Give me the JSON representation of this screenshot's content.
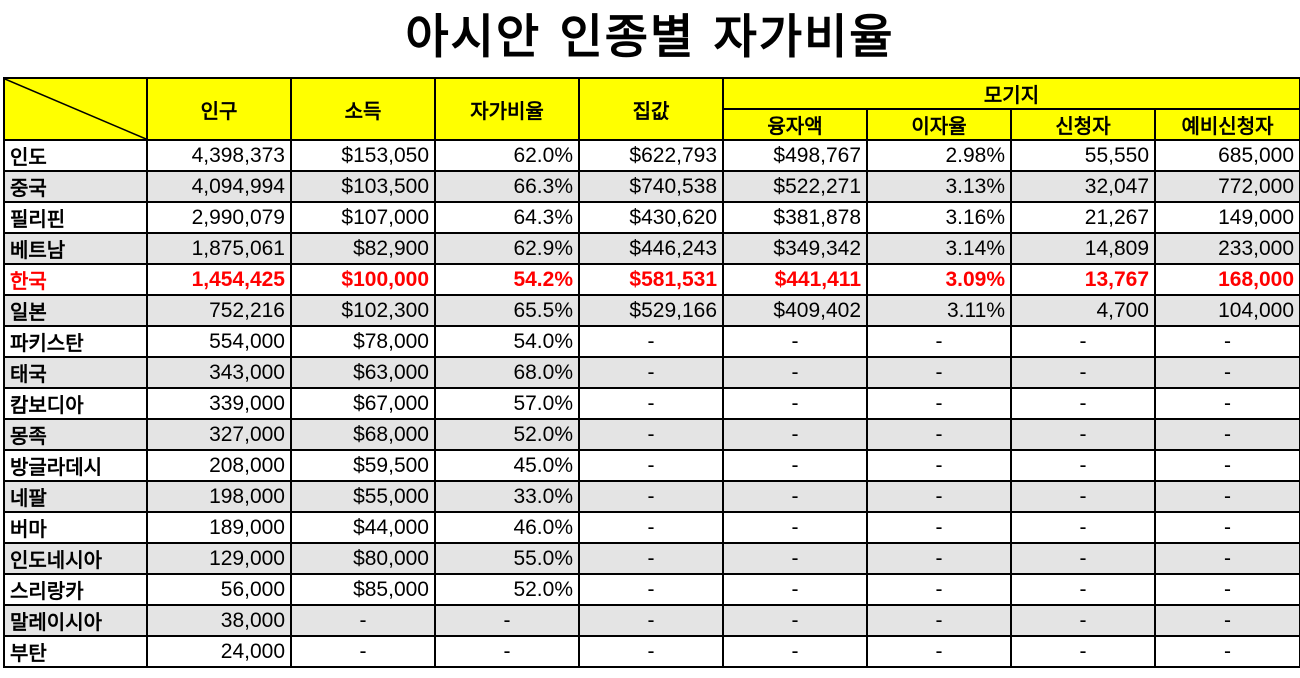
{
  "title": "아시안 인종별 자가비율",
  "headers": {
    "population": "인구",
    "income": "소득",
    "ownership_rate": "자가비율",
    "house_price": "집값",
    "mortgage": "모기지",
    "loan_amount": "융자액",
    "interest_rate": "이자율",
    "applicants": "신청자",
    "pre_applicants": "예비신청자"
  },
  "highlight_color": "#ff0000",
  "header_color": "#ffff00",
  "rows": [
    {
      "name": "인도",
      "population": "4,398,373",
      "income": "$153,050",
      "rate": "62.0%",
      "price": "$622,793",
      "loan": "$498,767",
      "interest": "2.98%",
      "applicants": "55,550",
      "pre": "685,000"
    },
    {
      "name": "중국",
      "population": "4,094,994",
      "income": "$103,500",
      "rate": "66.3%",
      "price": "$740,538",
      "loan": "$522,271",
      "interest": "3.13%",
      "applicants": "32,047",
      "pre": "772,000"
    },
    {
      "name": "필리핀",
      "population": "2,990,079",
      "income": "$107,000",
      "rate": "64.3%",
      "price": "$430,620",
      "loan": "$381,878",
      "interest": "3.16%",
      "applicants": "21,267",
      "pre": "149,000"
    },
    {
      "name": "베트남",
      "population": "1,875,061",
      "income": "$82,900",
      "rate": "62.9%",
      "price": "$446,243",
      "loan": "$349,342",
      "interest": "3.14%",
      "applicants": "14,809",
      "pre": "233,000"
    },
    {
      "name": "한국",
      "population": "1,454,425",
      "income": "$100,000",
      "rate": "54.2%",
      "price": "$581,531",
      "loan": "$441,411",
      "interest": "3.09%",
      "applicants": "13,767",
      "pre": "168,000"
    },
    {
      "name": "일본",
      "population": "752,216",
      "income": "$102,300",
      "rate": "65.5%",
      "price": "$529,166",
      "loan": "$409,402",
      "interest": "3.11%",
      "applicants": "4,700",
      "pre": "104,000"
    },
    {
      "name": "파키스탄",
      "population": "554,000",
      "income": "$78,000",
      "rate": "54.0%",
      "price": "-",
      "loan": "-",
      "interest": "-",
      "applicants": "-",
      "pre": "-"
    },
    {
      "name": "태국",
      "population": "343,000",
      "income": "$63,000",
      "rate": "68.0%",
      "price": "-",
      "loan": "-",
      "interest": "-",
      "applicants": "-",
      "pre": "-"
    },
    {
      "name": "캄보디아",
      "population": "339,000",
      "income": "$67,000",
      "rate": "57.0%",
      "price": "-",
      "loan": "-",
      "interest": "-",
      "applicants": "-",
      "pre": "-"
    },
    {
      "name": "몽족",
      "population": "327,000",
      "income": "$68,000",
      "rate": "52.0%",
      "price": "-",
      "loan": "-",
      "interest": "-",
      "applicants": "-",
      "pre": "-"
    },
    {
      "name": "방글라데시",
      "population": "208,000",
      "income": "$59,500",
      "rate": "45.0%",
      "price": "-",
      "loan": "-",
      "interest": "-",
      "applicants": "-",
      "pre": "-"
    },
    {
      "name": "네팔",
      "population": "198,000",
      "income": "$55,000",
      "rate": "33.0%",
      "price": "-",
      "loan": "-",
      "interest": "-",
      "applicants": "-",
      "pre": "-"
    },
    {
      "name": "버마",
      "population": "189,000",
      "income": "$44,000",
      "rate": "46.0%",
      "price": "-",
      "loan": "-",
      "interest": "-",
      "applicants": "-",
      "pre": "-"
    },
    {
      "name": "인도네시아",
      "population": "129,000",
      "income": "$80,000",
      "rate": "55.0%",
      "price": "-",
      "loan": "-",
      "interest": "-",
      "applicants": "-",
      "pre": "-"
    },
    {
      "name": "스리랑카",
      "population": "56,000",
      "income": "$85,000",
      "rate": "52.0%",
      "price": "-",
      "loan": "-",
      "interest": "-",
      "applicants": "-",
      "pre": "-"
    },
    {
      "name": "말레이시아",
      "population": "38,000",
      "income": "-",
      "rate": "-",
      "price": "-",
      "loan": "-",
      "interest": "-",
      "applicants": "-",
      "pre": "-"
    },
    {
      "name": "부탄",
      "population": "24,000",
      "income": "-",
      "rate": "-",
      "price": "-",
      "loan": "-",
      "interest": "-",
      "applicants": "-",
      "pre": "-"
    }
  ]
}
